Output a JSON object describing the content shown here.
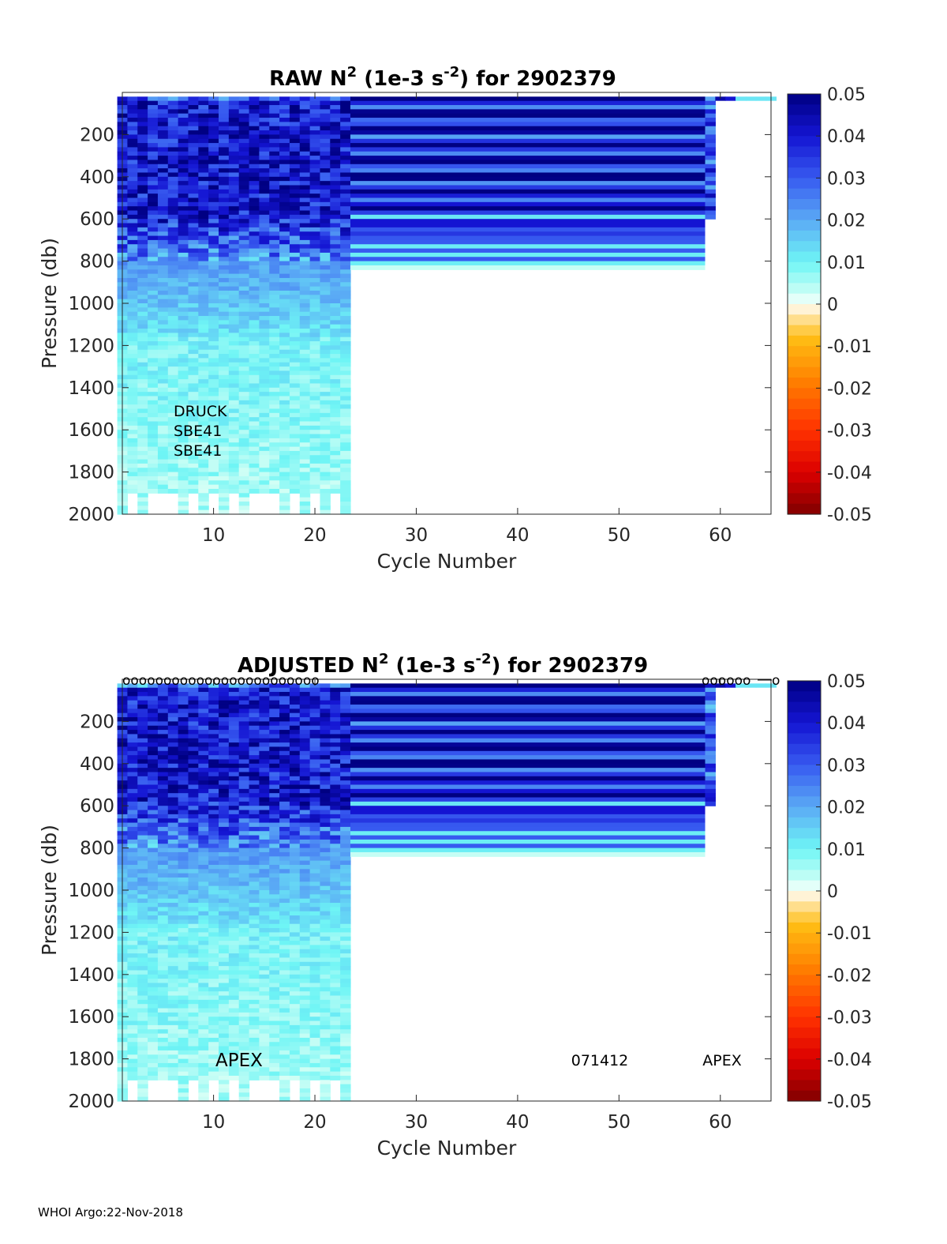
{
  "chart_data": [
    {
      "type": "heatmap",
      "title_prefix": "RAW N",
      "title_sup1": "2",
      "title_mid": " (1e-3 s",
      "title_sup2": "-2",
      "title_suffix": ") for 2902379",
      "xlabel": "Cycle Number",
      "ylabel": "Pressure (db)",
      "xlim": [
        1,
        65
      ],
      "ylim": [
        0,
        2000
      ],
      "xticks": [
        10,
        20,
        30,
        40,
        50,
        60
      ],
      "yticks": [
        200,
        400,
        600,
        800,
        1000,
        1200,
        1400,
        1600,
        1800,
        2000
      ],
      "clim": [
        -0.05,
        0.05
      ],
      "colorbar_ticks": [
        "0.05",
        "0.04",
        "0.03",
        "0.02",
        "0.01",
        "0",
        "-0.01",
        "-0.02",
        "-0.03",
        "-0.04",
        "-0.05"
      ],
      "annotations": [
        "DRUCK",
        "SBE41",
        "SBE41"
      ],
      "data_note": "Cycles 1-23 full-depth profiles (~0.04 shallow to ~0.005 deep); cycles 24-58 uniform layered profile to ~820 db; cycle 59 to ~600 db; cycles 60-65 only near-surface"
    },
    {
      "type": "heatmap",
      "title_prefix": "ADJUSTED N",
      "title_sup1": "2",
      "title_mid": " (1e-3 s",
      "title_sup2": "-2",
      "title_suffix": ") for 2902379",
      "xlabel": "Cycle Number",
      "ylabel": "Pressure (db)",
      "xlim": [
        1,
        65
      ],
      "ylim": [
        0,
        2000
      ],
      "xticks": [
        10,
        20,
        30,
        40,
        50,
        60
      ],
      "yticks": [
        200,
        400,
        600,
        800,
        1000,
        1200,
        1400,
        1600,
        1800,
        2000
      ],
      "clim": [
        -0.05,
        0.05
      ],
      "colorbar_ticks": [
        "0.05",
        "0.04",
        "0.03",
        "0.02",
        "0.01",
        "0",
        "-0.01",
        "-0.02",
        "-0.03",
        "-0.04",
        "-0.05"
      ],
      "annotations": [
        "APEX",
        "071412",
        "APEX"
      ],
      "qc_markers_text": "oooooooooooooooooooooooo",
      "qc_markers_right_text": "oooooo",
      "qc_marker_last": "o"
    }
  ],
  "footer": "WHOI Argo:22-Nov-2018"
}
